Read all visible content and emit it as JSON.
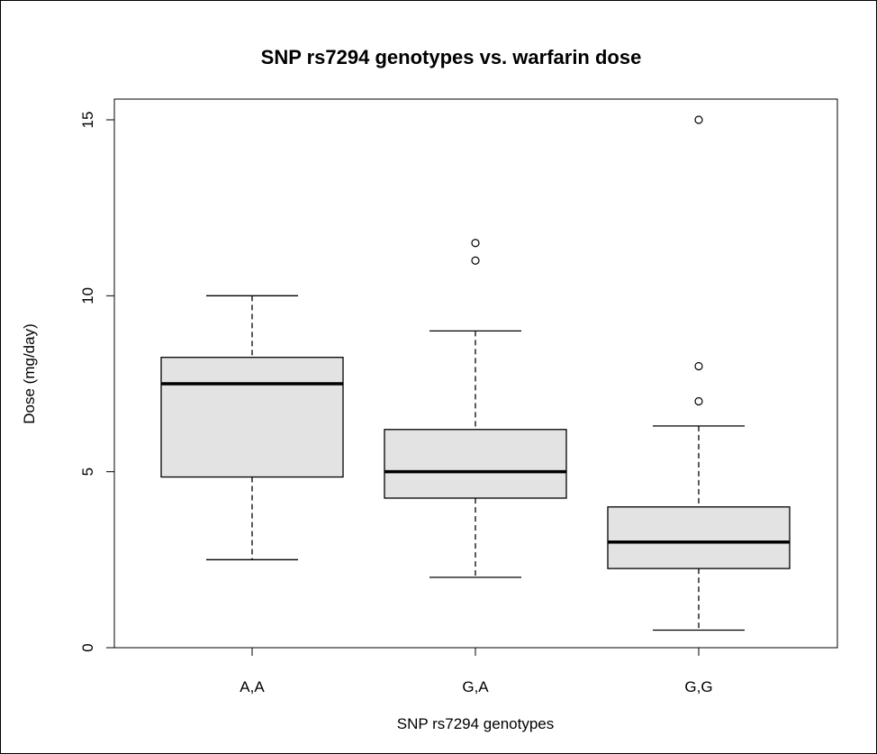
{
  "chart_data": {
    "type": "box",
    "title": "SNP rs7294 genotypes vs. warfarin dose",
    "xlabel": "SNP rs7294 genotypes",
    "ylabel": "Dose (mg/day)",
    "ylim": [
      0,
      15
    ],
    "yticks": [
      0,
      5,
      10,
      15
    ],
    "grid": false,
    "categories": [
      "A,A",
      "G,A",
      "G,G"
    ],
    "boxes": [
      {
        "category": "A,A",
        "whisker_low": 2.5,
        "q1": 4.85,
        "median": 7.5,
        "q3": 8.25,
        "whisker_high": 10.0,
        "outliers": []
      },
      {
        "category": "G,A",
        "whisker_low": 2.0,
        "q1": 4.25,
        "median": 5.0,
        "q3": 6.2,
        "whisker_high": 9.0,
        "outliers": [
          11.0,
          11.5
        ]
      },
      {
        "category": "G,G",
        "whisker_low": 0.5,
        "q1": 2.25,
        "median": 3.0,
        "q3": 4.0,
        "whisker_high": 6.3,
        "outliers": [
          7.0,
          8.0,
          15.0
        ]
      }
    ],
    "colors": {
      "box_fill": "#e3e3e3",
      "stroke": "#000000"
    }
  }
}
